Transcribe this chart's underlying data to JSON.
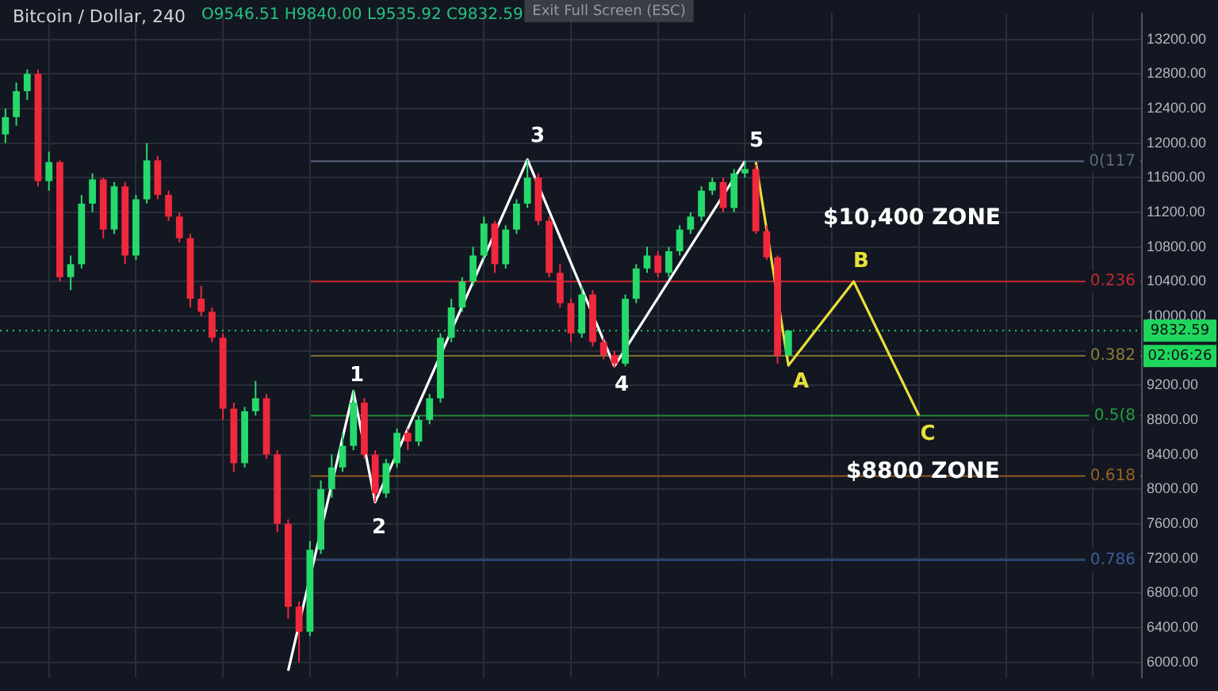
{
  "chart_data": {
    "type": "candlestick",
    "title": "Bitcoin / Dollar, 240",
    "subtitle": "O9546.51 H9840.00 L9535.92 C9832.59",
    "categories": [
      null,
      null,
      null,
      null,
      null,
      null,
      null,
      null,
      null,
      null,
      null,
      null,
      null,
      null,
      null,
      null,
      null,
      null,
      null,
      null,
      null,
      null,
      null,
      null,
      null,
      null,
      null,
      null,
      null,
      null,
      null,
      null,
      null,
      null,
      null,
      null,
      null,
      null,
      null,
      null,
      null,
      null,
      null,
      null,
      null,
      null,
      null,
      null,
      null,
      null,
      null,
      null,
      null,
      null,
      null,
      null,
      null,
      null,
      null,
      null,
      null,
      null,
      null,
      null,
      null,
      null,
      null,
      null,
      null,
      null,
      null,
      null,
      null,
      null,
      null,
      null,
      null,
      null,
      null,
      null,
      null,
      null,
      null,
      null,
      null,
      null,
      null,
      null,
      null,
      null,
      null,
      null,
      null,
      null,
      null,
      null,
      null,
      null,
      null,
      null,
      null,
      null,
      null,
      null,
      null
    ],
    "ohlc": [
      [
        12100,
        12400,
        12000,
        12300
      ],
      [
        12300,
        12700,
        12200,
        12600
      ],
      [
        12600,
        12850,
        12500,
        12800
      ],
      [
        12800,
        12850,
        11500,
        11560
      ],
      [
        11560,
        11900,
        11450,
        11780
      ],
      [
        11780,
        11800,
        10400,
        10450
      ],
      [
        10450,
        10700,
        10300,
        10600
      ],
      [
        10600,
        11400,
        10550,
        11300
      ],
      [
        11300,
        11650,
        11200,
        11580
      ],
      [
        11580,
        11600,
        10900,
        11000
      ],
      [
        11000,
        11550,
        10950,
        11500
      ],
      [
        11500,
        11550,
        10600,
        10700
      ],
      [
        10700,
        11400,
        10650,
        11350
      ],
      [
        11350,
        12000,
        11300,
        11800
      ],
      [
        11800,
        11850,
        11350,
        11400
      ],
      [
        11400,
        11450,
        11100,
        11150
      ],
      [
        11150,
        11200,
        10850,
        10900
      ],
      [
        10900,
        10950,
        10100,
        10200
      ],
      [
        10200,
        10350,
        10000,
        10050
      ],
      [
        10050,
        10100,
        9700,
        9750
      ],
      [
        9750,
        9800,
        8800,
        8930
      ],
      [
        8930,
        9000,
        8200,
        8300
      ],
      [
        8300,
        8950,
        8250,
        8900
      ],
      [
        8900,
        9250,
        8850,
        9050
      ],
      [
        9050,
        9100,
        8350,
        8400
      ],
      [
        8400,
        8450,
        7500,
        7600
      ],
      [
        7600,
        7650,
        6500,
        6640
      ],
      [
        6640,
        6700,
        6000,
        6350
      ],
      [
        6350,
        7400,
        6300,
        7300
      ],
      [
        7300,
        8100,
        7250,
        8000
      ],
      [
        8000,
        8400,
        7900,
        8250
      ],
      [
        8250,
        8650,
        8200,
        8500
      ],
      [
        8500,
        9150,
        8450,
        9000
      ],
      [
        9000,
        9050,
        8350,
        8400
      ],
      [
        8400,
        8450,
        7850,
        7950
      ],
      [
        7950,
        8350,
        7900,
        8300
      ],
      [
        8300,
        8700,
        8250,
        8650
      ],
      [
        8650,
        8700,
        8450,
        8550
      ],
      [
        8550,
        8850,
        8500,
        8800
      ],
      [
        8800,
        9100,
        8750,
        9050
      ],
      [
        9050,
        9800,
        9000,
        9750
      ],
      [
        9750,
        10200,
        9700,
        10100
      ],
      [
        10100,
        10450,
        10050,
        10400
      ],
      [
        10400,
        10800,
        10350,
        10700
      ],
      [
        10700,
        11150,
        10650,
        11070
      ],
      [
        11070,
        11100,
        10500,
        10600
      ],
      [
        10600,
        11050,
        10550,
        11000
      ],
      [
        11000,
        11350,
        10950,
        11300
      ],
      [
        11300,
        11810,
        11250,
        11600
      ],
      [
        11600,
        11650,
        11050,
        11100
      ],
      [
        11100,
        11150,
        10450,
        10500
      ],
      [
        10500,
        10600,
        10100,
        10150
      ],
      [
        10150,
        10200,
        9700,
        9800
      ],
      [
        9800,
        10350,
        9750,
        10250
      ],
      [
        10250,
        10300,
        9650,
        9700
      ],
      [
        9700,
        9750,
        9500,
        9550
      ],
      [
        9550,
        9600,
        9400,
        9450
      ],
      [
        9450,
        10250,
        9420,
        10200
      ],
      [
        10200,
        10600,
        10150,
        10550
      ],
      [
        10550,
        10800,
        10500,
        10700
      ],
      [
        10700,
        10750,
        10450,
        10500
      ],
      [
        10500,
        10800,
        10450,
        10750
      ],
      [
        10750,
        11050,
        10700,
        11000
      ],
      [
        11000,
        11200,
        10950,
        11150
      ],
      [
        11150,
        11500,
        11100,
        11450
      ],
      [
        11450,
        11600,
        11400,
        11550
      ],
      [
        11550,
        11600,
        11200,
        11250
      ],
      [
        11250,
        11700,
        11200,
        11650
      ],
      [
        11650,
        11790,
        11600,
        11700
      ],
      [
        11700,
        11750,
        10950,
        10980
      ],
      [
        10980,
        11050,
        10650,
        10680
      ],
      [
        10680,
        10700,
        9450,
        9546.51
      ],
      [
        9546.51,
        9840,
        9535.92,
        9832.59
      ],
      null,
      null,
      null,
      null,
      null,
      null,
      null,
      null,
      null,
      null,
      null,
      null,
      null,
      null,
      null,
      null,
      null,
      null,
      null,
      null,
      null,
      null,
      null,
      null,
      null,
      null,
      null,
      null,
      null,
      null,
      null,
      null
    ],
    "colors": [
      "#26d96b",
      "#26d96b",
      "#26d96b",
      "#f0283c",
      "#26d96b",
      "#f0283c",
      "#26d96b",
      "#26d96b",
      "#26d96b",
      "#f0283c",
      "#26d96b",
      "#f0283c",
      "#26d96b",
      "#26d96b",
      "#f0283c",
      "#f0283c",
      "#f0283c",
      "#f0283c",
      "#f0283c",
      "#f0283c",
      "#f0283c",
      "#f0283c",
      "#26d96b",
      "#26d96b",
      "#f0283c",
      "#f0283c",
      "#f0283c",
      "#f0283c",
      "#26d96b",
      "#26d96b",
      "#26d96b",
      "#26d96b",
      "#26d96b",
      "#f0283c",
      "#f0283c",
      "#26d96b",
      "#26d96b",
      "#f0283c",
      "#26d96b",
      "#26d96b",
      "#26d96b",
      "#26d96b",
      "#26d96b",
      "#26d96b",
      "#26d96b",
      "#f0283c",
      "#26d96b",
      "#26d96b",
      "#26d96b",
      "#f0283c",
      "#f0283c",
      "#f0283c",
      "#f0283c",
      "#26d96b",
      "#f0283c",
      "#f0283c",
      "#f0283c",
      "#26d96b",
      "#26d96b",
      "#26d96b",
      "#f0283c",
      "#26d96b",
      "#26d96b",
      "#26d96b",
      "#26d96b",
      "#26d96b",
      "#f0283c",
      "#26d96b",
      "#26d96b",
      "#f0283c",
      "#f0283c",
      "#f0283c",
      "#26d96b",
      null,
      null,
      null,
      null,
      null,
      null,
      null,
      null,
      null,
      null,
      null,
      null,
      null,
      null,
      null,
      null,
      null,
      null,
      null,
      null,
      null,
      null,
      null,
      null,
      null,
      null,
      null,
      null,
      null,
      null,
      null,
      null
    ],
    "series": [
      {
        "type": "line",
        "color": "#ffffff",
        "values": [
          null,
          null,
          null,
          null,
          null,
          null,
          null,
          null,
          null,
          null,
          null,
          null,
          null,
          null,
          null,
          null,
          null,
          null,
          null,
          null,
          null,
          null,
          null,
          null,
          null,
          null,
          5900,
          null,
          null,
          null,
          null,
          null,
          9130,
          null,
          7850,
          null,
          null,
          null,
          null,
          null,
          null,
          null,
          null,
          null,
          null,
          null,
          null,
          null,
          11810,
          null,
          null,
          null,
          null,
          null,
          null,
          null,
          9420,
          null,
          null,
          null,
          null,
          null,
          null,
          null,
          null,
          null,
          null,
          null,
          11790,
          null,
          null,
          null,
          null,
          null,
          null,
          null,
          null,
          null,
          null,
          null,
          null,
          null,
          null,
          null,
          null,
          null,
          null,
          null,
          null,
          null,
          null,
          null,
          null,
          null,
          null,
          null,
          null,
          null,
          null,
          null,
          null,
          null,
          null,
          null,
          null
        ],
        "line_style": "solid"
      },
      {
        "type": "line",
        "color": "#e8e03a",
        "values": [
          null,
          null,
          null,
          null,
          null,
          null,
          null,
          null,
          null,
          null,
          null,
          null,
          null,
          null,
          null,
          null,
          null,
          null,
          null,
          null,
          null,
          null,
          null,
          null,
          null,
          null,
          null,
          null,
          null,
          null,
          null,
          null,
          null,
          null,
          null,
          null,
          null,
          null,
          null,
          null,
          null,
          null,
          null,
          null,
          null,
          null,
          null,
          null,
          null,
          null,
          null,
          null,
          null,
          null,
          null,
          null,
          null,
          null,
          null,
          null,
          null,
          null,
          null,
          null,
          null,
          null,
          null,
          null,
          null,
          11780,
          null,
          null,
          9430,
          null,
          null,
          null,
          null,
          null,
          10400,
          null,
          null,
          null,
          null,
          null,
          8850,
          null,
          null,
          null,
          null,
          null,
          null,
          null,
          null,
          null,
          null,
          null,
          null,
          null,
          null,
          null,
          null,
          null,
          null,
          null,
          null
        ],
        "line_style": "solid"
      }
    ],
    "ylim": [
      5820,
      13500
    ],
    "yticks": [
      {
        "value": 6000,
        "label": "6000.00"
      },
      {
        "value": 6400,
        "label": "6400.00"
      },
      {
        "value": 6800,
        "label": "6800.00"
      },
      {
        "value": 7200,
        "label": "7200.00"
      },
      {
        "value": 7600,
        "label": "7600.00"
      },
      {
        "value": 8000,
        "label": "8000.00"
      },
      {
        "value": 8400,
        "label": "8400.00"
      },
      {
        "value": 8800,
        "label": "8800.00"
      },
      {
        "value": 9200,
        "label": "9200.00"
      },
      {
        "value": 9600,
        "label": null
      },
      {
        "value": 10000,
        "label": "10000.00"
      },
      {
        "value": 10400,
        "label": "10400.00"
      },
      {
        "value": 10800,
        "label": "10800.00"
      },
      {
        "value": 11200,
        "label": "11200.00"
      },
      {
        "value": 11600,
        "label": "11600.00"
      },
      {
        "value": 12000,
        "label": "12000.00"
      },
      {
        "value": 12400,
        "label": "12400.00"
      },
      {
        "value": 12800,
        "label": "12800.00"
      },
      {
        "value": 13200,
        "label": "13200.00"
      }
    ],
    "ref_lines": [
      {
        "axis": "y",
        "value": 11790,
        "color": "#5d6680"
      },
      {
        "axis": "y",
        "value": 10400,
        "color": "#c4282e"
      },
      {
        "axis": "y",
        "value": 9540,
        "color": "#7d7130"
      },
      {
        "axis": "y",
        "value": 8850,
        "color": "#1e8a34"
      },
      {
        "axis": "y",
        "value": 8150,
        "color": "#8f5a1c"
      },
      {
        "axis": "y",
        "value": 7180,
        "color": "#2f4f86"
      },
      {
        "axis": "y",
        "value": 9832.59,
        "label": "9832.59",
        "color": "#1fd65c",
        "line_style": "dotted"
      }
    ],
    "annotations": [
      "$10,400 ZONE",
      "$8800 ZONE",
      "02:06:26",
      "Exit Full Screen (ESC)",
      "1",
      "2",
      "3",
      "4",
      "5",
      "A",
      "B",
      "C",
      "0(117",
      "0.236",
      "0.382",
      "0.5(8",
      "0.618",
      "0.786"
    ],
    "grid": true,
    "tick_labels": "y"
  }
}
